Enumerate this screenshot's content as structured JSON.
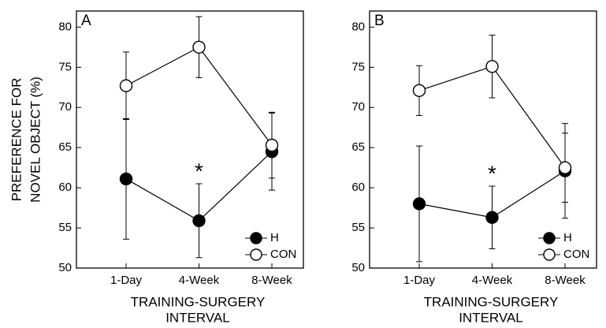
{
  "chart_data": [
    {
      "type": "line",
      "panel_label": "A",
      "ylabel": [
        "PREFERENCE FOR",
        "NOVEL OBJECT (%)"
      ],
      "xlabel": [
        "TRAINING-SURGERY",
        "INTERVAL"
      ],
      "categories": [
        "1-Day",
        "4-Week",
        "8-Week"
      ],
      "series": [
        {
          "name": "H",
          "color": "#000000",
          "values": [
            61.1,
            55.9,
            64.5
          ],
          "errors": [
            7.5,
            4.6,
            4.8
          ]
        },
        {
          "name": "CON",
          "color": "#ffffff",
          "values": [
            72.7,
            77.5,
            65.3
          ],
          "errors": [
            4.2,
            3.8,
            4.1
          ]
        }
      ],
      "annotation": {
        "text": "*",
        "category": 1
      },
      "ylim": [
        50,
        82
      ],
      "yticks": [
        50,
        55,
        60,
        65,
        70,
        75,
        80
      ],
      "legend": "lower right"
    },
    {
      "type": "line",
      "panel_label": "B",
      "xlabel": [
        "TRAINING-SURGERY",
        "INTERVAL"
      ],
      "categories": [
        "1-Day",
        "4-Week",
        "8-Week"
      ],
      "series": [
        {
          "name": "H",
          "color": "#000000",
          "values": [
            58.0,
            56.3,
            62.1
          ],
          "errors": [
            7.2,
            3.9,
            5.9
          ]
        },
        {
          "name": "CON",
          "color": "#ffffff",
          "values": [
            72.1,
            75.1,
            62.5
          ],
          "errors": [
            3.1,
            3.9,
            4.3
          ]
        }
      ],
      "annotation": {
        "text": "*",
        "category": 1
      },
      "ylim": [
        50,
        82
      ],
      "yticks": [
        50,
        55,
        60,
        65,
        70,
        75,
        80
      ],
      "legend": "lower right"
    }
  ]
}
